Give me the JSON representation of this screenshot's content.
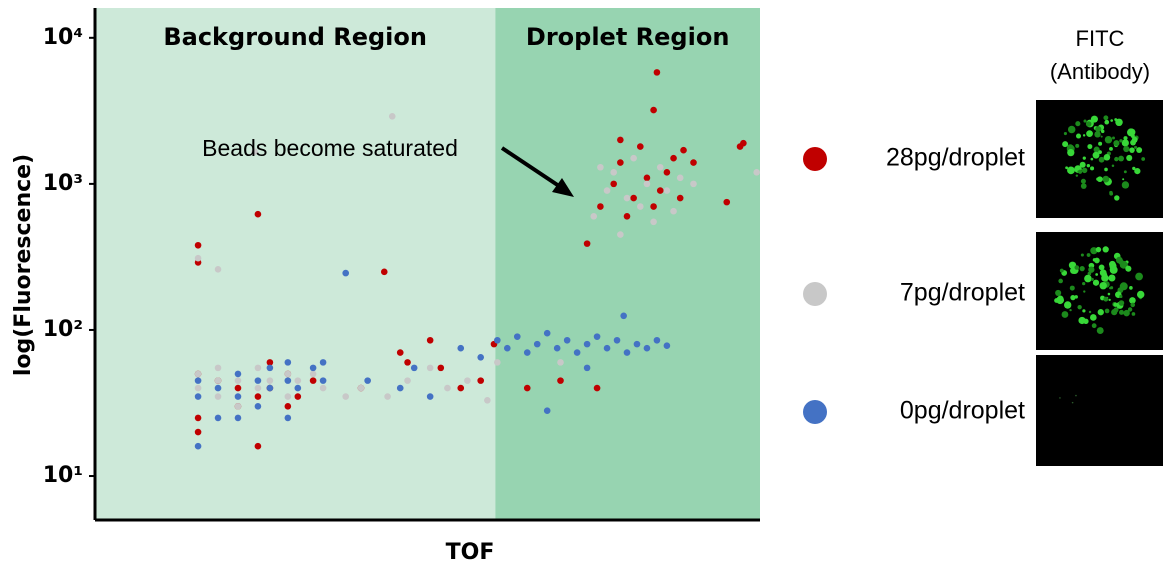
{
  "chart_data": {
    "type": "scatter",
    "x_label": "TOF",
    "y_label": "log(Fluorescence)",
    "log_y": true,
    "xlim": [
      0,
      100
    ],
    "ylim": [
      5,
      16000
    ],
    "yticks": [
      {
        "value": 10,
        "label": "10¹"
      },
      {
        "value": 100,
        "label": "10²"
      },
      {
        "value": 1000,
        "label": "10³"
      },
      {
        "value": 10000,
        "label": "10⁴"
      }
    ],
    "regions": [
      {
        "label": "Background Region",
        "range": [
          0,
          60.2
        ],
        "color": "#cde9d9"
      },
      {
        "label": "Droplet Region",
        "range": [
          60.2,
          100
        ],
        "color": "#97d4b1"
      }
    ],
    "annotation": "Beads become saturated",
    "image_title": [
      "FITC",
      "(Antibody)"
    ],
    "series": [
      {
        "name": "28pg/droplet",
        "color": "#c00000",
        "x": [
          15.5,
          15.5,
          15.5,
          15.5,
          15.5,
          18.5,
          21.5,
          21.5,
          24.5,
          24.5,
          24.5,
          26.3,
          26.3,
          29,
          29,
          30.5,
          32.8,
          43.5,
          40,
          45.9,
          47,
          50.4,
          52,
          55,
          58,
          60,
          65,
          70,
          75.5,
          74,
          76,
          78,
          79,
          80,
          81,
          82,
          83,
          84,
          85,
          86,
          87,
          88,
          84,
          84.5,
          88.5,
          90,
          95,
          97,
          97.5,
          79
        ],
        "values": [
          380,
          290,
          50,
          25,
          20,
          45,
          40,
          30,
          620,
          35,
          16,
          60,
          40,
          50,
          30,
          35,
          45,
          250,
          40,
          70,
          60,
          85,
          55,
          40,
          45,
          80,
          40,
          45,
          40,
          390,
          700,
          1000,
          1400,
          600,
          800,
          1800,
          1100,
          700,
          900,
          1200,
          1500,
          800,
          3200,
          5800,
          1700,
          1400,
          750,
          1800,
          1900,
          2000
        ]
      },
      {
        "name": "7pg/droplet",
        "color": "#c8c8c8",
        "x": [
          15.5,
          15.5,
          15.5,
          18.5,
          18.5,
          18.5,
          21.5,
          21.5,
          24.5,
          24.5,
          26.3,
          29,
          29,
          30.5,
          32.8,
          34.3,
          37.7,
          40,
          44,
          47,
          50.4,
          53,
          56,
          59,
          60.5,
          18.5,
          44.7,
          24,
          75,
          77,
          78,
          80,
          81,
          82,
          83,
          84,
          85,
          86,
          87,
          88,
          90,
          79,
          76,
          99.5,
          70
        ],
        "values": [
          310,
          50,
          40,
          55,
          45,
          35,
          45,
          30,
          55,
          40,
          45,
          50,
          35,
          45,
          50,
          40,
          35,
          40,
          35,
          45,
          55,
          40,
          45,
          33,
          60,
          260,
          2900,
          1660,
          600,
          900,
          1200,
          800,
          1500,
          700,
          1000,
          550,
          1300,
          900,
          650,
          1100,
          1000,
          450,
          1300,
          1200,
          60
        ]
      },
      {
        "name": "0pg/droplet",
        "color": "#4472c4",
        "x": [
          15.5,
          15.5,
          15.5,
          18.5,
          18.5,
          21.5,
          21.5,
          21.5,
          24.5,
          24.5,
          26.3,
          26.3,
          29,
          29,
          29,
          30.5,
          32.8,
          34.3,
          34.3,
          37.7,
          41,
          45.9,
          48,
          50.4,
          55,
          58,
          60.5,
          62,
          63.5,
          65,
          66.5,
          68,
          69.5,
          71,
          72.5,
          74,
          75.5,
          77,
          78.5,
          80,
          81.5,
          83,
          84.5,
          86,
          79.5,
          68,
          74
        ],
        "values": [
          16,
          35,
          45,
          40,
          25,
          50,
          35,
          25,
          45,
          30,
          55,
          40,
          60,
          45,
          25,
          40,
          55,
          60,
          45,
          245,
          45,
          40,
          55,
          35,
          75,
          65,
          85,
          75,
          90,
          70,
          80,
          95,
          75,
          85,
          70,
          80,
          90,
          75,
          85,
          70,
          80,
          75,
          85,
          78,
          125,
          28,
          55
        ]
      }
    ]
  }
}
